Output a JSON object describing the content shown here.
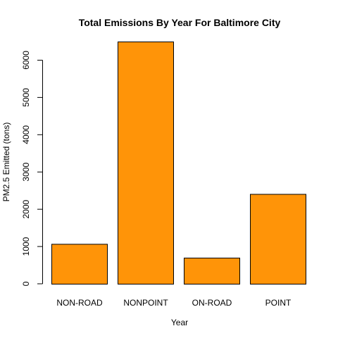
{
  "chart_data": {
    "type": "bar",
    "title": "Total Emissions By Year For Baltimore City",
    "xlabel": "Year",
    "ylabel": "PM2.5 Emitted (tons)",
    "categories": [
      "NON-ROAD",
      "NONPOINT",
      "ON-ROAD",
      "POINT"
    ],
    "values": [
      1070,
      6500,
      700,
      2410
    ],
    "ylim": [
      0,
      6500
    ],
    "yticks": [
      0,
      1000,
      2000,
      3000,
      4000,
      5000,
      6000
    ],
    "ytick_labels": [
      "0",
      "1000",
      "2000",
      "3000",
      "4000",
      "5000",
      "6000"
    ],
    "bar_color": "#ff9408",
    "grid": false,
    "legend": "none"
  }
}
